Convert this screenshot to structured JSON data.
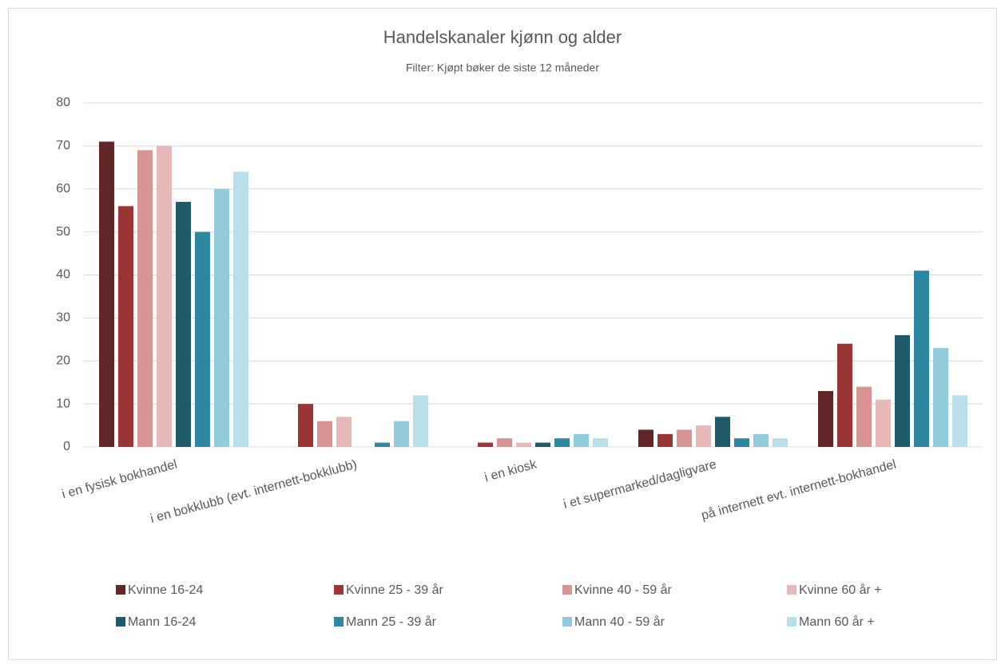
{
  "chart_data": {
    "type": "bar",
    "title": "Handelskanaler kjønn og alder",
    "subtitle": "Filter: Kjøpt bøker de siste 12 måneder",
    "categories": [
      "i en fysisk bokhandel",
      "i en bokklubb (evt. internett-bokklubb)",
      "i en kiosk",
      "i et supermarked/dagligvare",
      "på internett evt. internett-bokhandel"
    ],
    "series": [
      {
        "name": "Kvinne 16-24",
        "color": "#622626",
        "values": [
          71,
          0,
          0,
          4,
          13
        ]
      },
      {
        "name": "Kvinne 25 - 39 år",
        "color": "#9b3535",
        "values": [
          56,
          10,
          1,
          3,
          24
        ]
      },
      {
        "name": "Kvinne 40 - 59 år",
        "color": "#d99594",
        "values": [
          69,
          6,
          2,
          4,
          14
        ]
      },
      {
        "name": "Kvinne 60 år +",
        "color": "#e8b9b8",
        "values": [
          70,
          7,
          1,
          5,
          11
        ]
      },
      {
        "name": "Mann 16-24",
        "color": "#1e5a6a",
        "values": [
          57,
          0,
          1,
          7,
          26
        ]
      },
      {
        "name": "Mann 25 - 39 år",
        "color": "#2e87a0",
        "values": [
          50,
          1,
          2,
          2,
          41
        ]
      },
      {
        "name": "Mann 40 - 59 år",
        "color": "#91cbdc",
        "values": [
          60,
          6,
          3,
          3,
          23
        ]
      },
      {
        "name": "Mann 60 år +",
        "color": "#b8dfe9",
        "values": [
          64,
          12,
          2,
          2,
          12
        ]
      }
    ],
    "ylim": [
      0,
      80
    ],
    "yticks": [
      0,
      10,
      20,
      30,
      40,
      50,
      60,
      70,
      80
    ],
    "grid": true
  }
}
